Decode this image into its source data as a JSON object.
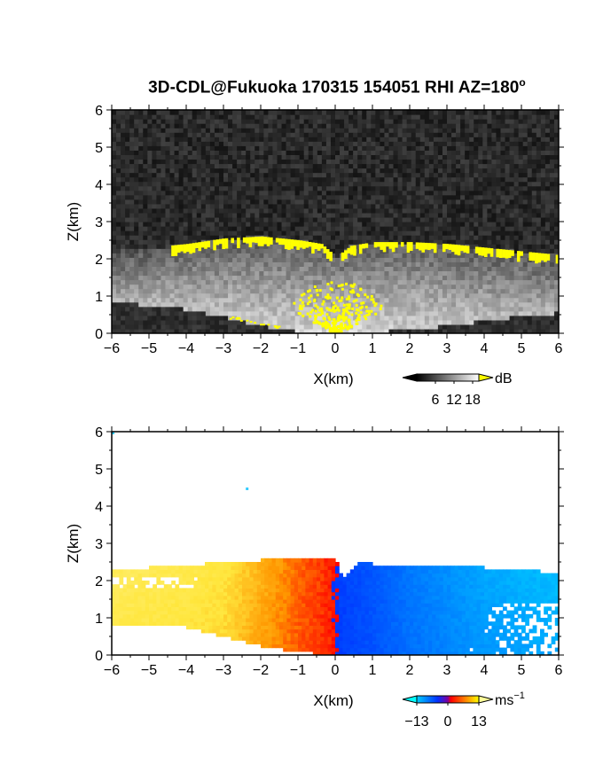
{
  "title": "3D-CDL@Fukuoka 170315 154051 RHI AZ=180",
  "title_sup": "o",
  "chart_data": [
    {
      "type": "heatmap",
      "name": "backscatter-intensity-panel",
      "xlabel": "X(km)",
      "ylabel": "Z(km)",
      "xlim": [
        -6,
        6
      ],
      "ylim": [
        0,
        6
      ],
      "x_ticks": [
        -6,
        -5,
        -4,
        -3,
        -2,
        -1,
        0,
        1,
        2,
        3,
        4,
        5,
        6
      ],
      "y_ticks": [
        0,
        1,
        2,
        3,
        4,
        5,
        6
      ],
      "colorbar": {
        "unit": "dB",
        "ticks": [
          6,
          12,
          18
        ],
        "range": [
          0,
          20
        ],
        "colors": [
          "#000000",
          "#ffffff"
        ],
        "over_color": "#ffff00"
      },
      "field": {
        "background_db": 3,
        "echo_top_km": [
          [
            -6,
            2.2
          ],
          [
            -5,
            2.3
          ],
          [
            -4,
            2.4
          ],
          [
            -3,
            2.55
          ],
          [
            -2,
            2.6
          ],
          [
            -1,
            2.5
          ],
          [
            -0.4,
            2.4
          ],
          [
            0,
            2.05
          ],
          [
            0.4,
            2.35
          ],
          [
            1,
            2.45
          ],
          [
            2,
            2.45
          ],
          [
            3,
            2.4
          ],
          [
            4,
            2.3
          ],
          [
            5,
            2.2
          ],
          [
            6,
            2.1
          ]
        ],
        "echo_base_km": [
          [
            -6,
            0.85
          ],
          [
            -4,
            0.65
          ],
          [
            -3,
            0.45
          ],
          [
            -2,
            0.22
          ],
          [
            -1,
            0.05
          ],
          [
            0,
            0
          ],
          [
            1,
            0.02
          ],
          [
            2,
            0.1
          ],
          [
            3,
            0.2
          ],
          [
            4,
            0.35
          ],
          [
            5,
            0.45
          ],
          [
            6,
            0.55
          ]
        ],
        "saturated_regions": [
          "echo-top-band",
          "near-radar-core"
        ]
      }
    },
    {
      "type": "heatmap",
      "name": "radial-velocity-panel",
      "xlabel": "X(km)",
      "ylabel": "Z(km)",
      "xlim": [
        -6,
        6
      ],
      "ylim": [
        0,
        6
      ],
      "x_ticks": [
        -6,
        -5,
        -4,
        -3,
        -2,
        -1,
        0,
        1,
        2,
        3,
        4,
        5,
        6
      ],
      "y_ticks": [
        0,
        1,
        2,
        3,
        4,
        5,
        6
      ],
      "colorbar": {
        "unit": "ms",
        "unit_sup": "−1",
        "ticks": [
          "−13",
          "0",
          "13"
        ],
        "range": [
          -13,
          13
        ],
        "colors": [
          "#00ccff",
          "#0033ff",
          "#ff0000",
          "#ffff00"
        ],
        "under_color": "#00ffff",
        "over_color": "#ffff99"
      },
      "field": {
        "velocity_profile": [
          [
            -6,
            11
          ],
          [
            -4,
            10
          ],
          [
            -3,
            9
          ],
          [
            -2,
            6
          ],
          [
            -1,
            3
          ],
          [
            -0.1,
            1
          ],
          [
            0.1,
            -1
          ],
          [
            1,
            -3
          ],
          [
            2,
            -6
          ],
          [
            3,
            -8
          ],
          [
            4,
            -10
          ],
          [
            6,
            -12
          ]
        ],
        "echo_top_km": [
          [
            -6,
            2.3
          ],
          [
            -4,
            2.4
          ],
          [
            -3,
            2.5
          ],
          [
            -2,
            2.55
          ],
          [
            -1,
            2.6
          ],
          [
            0,
            2.6
          ],
          [
            0.2,
            2.1
          ],
          [
            0.6,
            2.5
          ],
          [
            1,
            2.45
          ],
          [
            2,
            2.45
          ],
          [
            3,
            2.4
          ],
          [
            4,
            2.35
          ],
          [
            5,
            2.3
          ],
          [
            6,
            2.2
          ]
        ],
        "echo_base_km": [
          [
            -6,
            0.85
          ],
          [
            -4,
            0.75
          ],
          [
            -3,
            0.5
          ],
          [
            -2,
            0.25
          ],
          [
            -1,
            0.08
          ],
          [
            0,
            0
          ],
          [
            1,
            0
          ],
          [
            2,
            0
          ],
          [
            3,
            0
          ],
          [
            4,
            0
          ],
          [
            5,
            0
          ],
          [
            6,
            0
          ]
        ]
      }
    }
  ]
}
